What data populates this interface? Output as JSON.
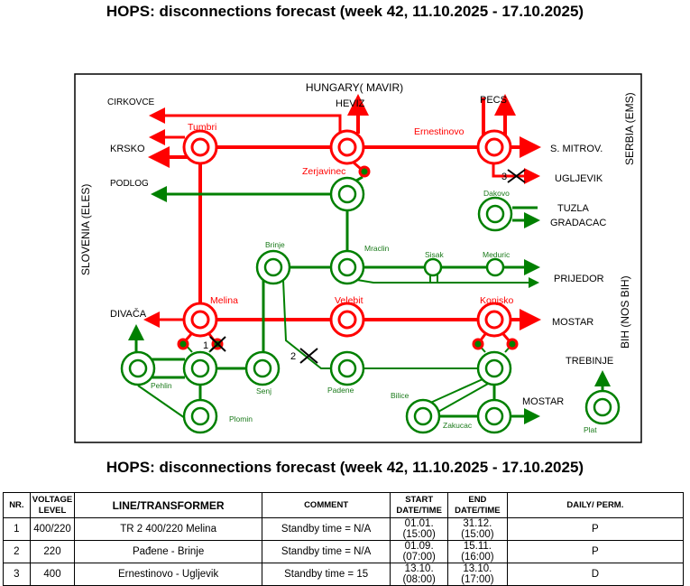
{
  "title": "HOPS: disconnections forecast (week 42, 11.10.2025 - 17.10.2025)",
  "table_title": "HOPS: disconnections forecast (week 42, 11.10.2025 - 17.10.2025)",
  "colors": {
    "line_400kv": "#ff0000",
    "line_220kv": "#008000",
    "text_station_400": "#ff0000",
    "text_station_220": "#1a7a1a"
  },
  "diagram": {
    "regions": {
      "hungary": "HUNGARY( MAVIR)",
      "slovenia": "SLOVENIA (ELES)",
      "serbia": "SERBIA (EMS)",
      "bih": "BIH (NOS BIH)"
    },
    "borders": {
      "cirkovce": "CIRKOVCE",
      "heviz": "HEVIZ",
      "krsko": "KRSKO",
      "podlog": "PODLOG",
      "pecs": "PECS",
      "s_mitrov": "S. MITROV.",
      "ugljevik": "UGLJEVIK",
      "tuzla": "TUZLA",
      "gradacac": "GRADACAC",
      "prijedor": "PRIJEDOR",
      "divaca": "DIVAČA",
      "mostar1": "MOSTAR",
      "trebinje": "TREBINJE",
      "mostar2": "MOSTAR"
    },
    "stations": {
      "tumbri": "Tumbri",
      "zerjavinec": "Zerjavinec",
      "ernestinovo": "Ernestinovo",
      "dakovo": "Dakovo",
      "brinje": "Brinje",
      "mraclin": "Mraclin",
      "sisak": "Sisak",
      "meduric": "Meduric",
      "melina": "Melina",
      "velebit": "Velebit",
      "konjsko": "Konjsko",
      "pehlin": "Pehlin",
      "senj": "Senj",
      "padene": "Padene",
      "plomin": "Plomin",
      "bilice": "Bilice",
      "zakucac": "Zakucac",
      "plat": "Plat"
    },
    "markers": {
      "m1": "1",
      "m2": "2",
      "m3": "3"
    }
  },
  "table": {
    "headers": [
      "NR.",
      "VOLTAGE LEVEL",
      "LINE/TRANSFORMER",
      "COMMENT",
      "START DATE/TIME",
      "END DATE/TIME",
      "DAILY/ PERM."
    ],
    "rows": [
      [
        "1",
        "400/220",
        "TR 2 400/220 Melina",
        "Standby time = N/A",
        "01.01. (15:00)",
        "31.12. (15:00)",
        "P"
      ],
      [
        "2",
        "220",
        "Pađene - Brinje",
        "Standby time = N/A",
        "01.09. (07:00)",
        "15.11. (16:00)",
        "P"
      ],
      [
        "3",
        "400",
        "Ernestinovo - Ugljevik",
        "Standby time = 15",
        "13.10. (08:00)",
        "13.10. (17:00)",
        "D"
      ]
    ]
  }
}
